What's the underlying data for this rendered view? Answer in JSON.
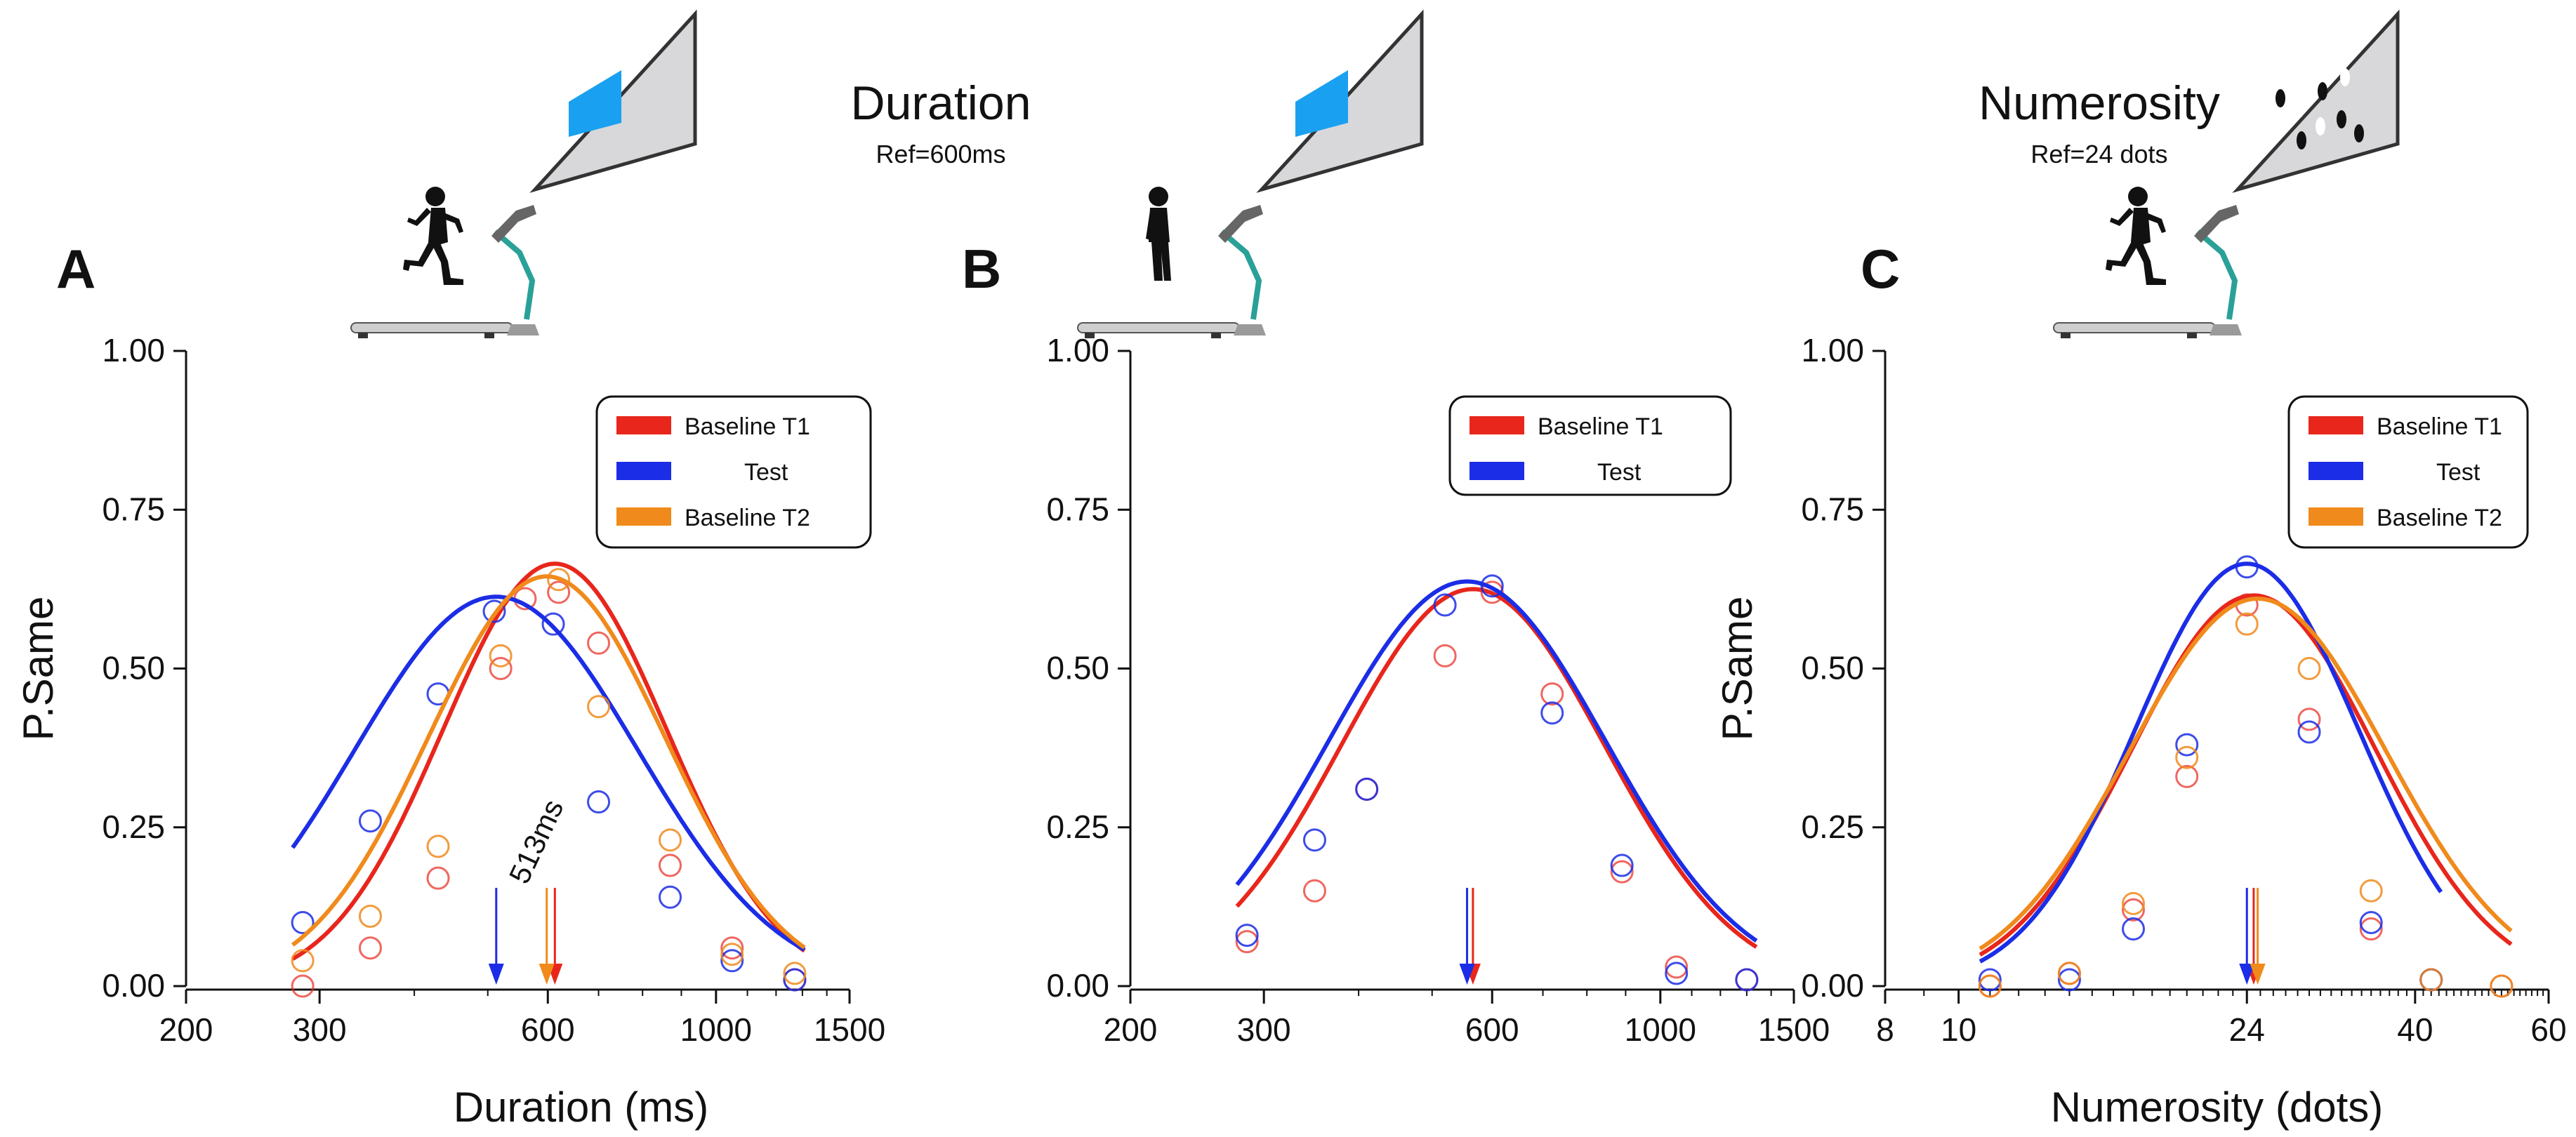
{
  "header": {
    "duration_title": "Duration",
    "duration_ref": "Ref=600ms",
    "numerosity_title": "Numerosity",
    "numerosity_ref": "Ref=24 dots"
  },
  "colors": {
    "baseline_t1": "#e8261c",
    "test": "#1b2de6",
    "baseline_t2": "#f08a1c",
    "screen_stim": "#1aa0f0",
    "arm": "#2aa198",
    "screen": "#d8d8da"
  },
  "icons": [
    "runner-on-treadmill-icon",
    "walker-on-treadmill-icon",
    "runner-on-treadmill-icon"
  ],
  "chart_data": [
    {
      "type": "line",
      "panel_letter": "A",
      "xlabel": "Duration (ms)",
      "ylabel": "P.Same",
      "xscale": "log",
      "xlim": [
        200,
        1500
      ],
      "ylim": [
        0,
        1
      ],
      "xticks": [
        200,
        300,
        600,
        1000,
        1500
      ],
      "xtick_labels": [
        "200",
        "300",
        "600",
        "1000",
        "1500"
      ],
      "yticks": [
        0,
        0.25,
        0.5,
        0.75,
        1.0
      ],
      "ytick_labels": [
        "0.00",
        "0.25",
        "0.50",
        "0.75",
        "1.00"
      ],
      "legend_position": "top-right",
      "annotation": "513ms",
      "series": [
        {
          "name": "Baseline T1",
          "color_key": "baseline_t1",
          "fit": {
            "peak": 0.665,
            "center": 613,
            "sigma_log": 0.34
          },
          "points_x": [
            285,
            350,
            430,
            520,
            560,
            620,
            700,
            870,
            1050,
            1270
          ],
          "points_y": [
            0.0,
            0.06,
            0.17,
            0.5,
            0.61,
            0.62,
            0.54,
            0.19,
            0.06,
            0.01
          ],
          "pse": 613
        },
        {
          "name": "Test",
          "color_key": "test",
          "fit": {
            "peak": 0.613,
            "center": 513,
            "sigma_log": 0.43
          },
          "points_x": [
            285,
            350,
            430,
            510,
            610,
            700,
            870,
            1050,
            1270
          ],
          "points_y": [
            0.1,
            0.26,
            0.46,
            0.59,
            0.57,
            0.29,
            0.14,
            0.04,
            0.01
          ],
          "pse": 513
        },
        {
          "name": "Baseline T2",
          "color_key": "baseline_t2",
          "fit": {
            "peak": 0.645,
            "center": 598,
            "sigma_log": 0.36
          },
          "points_x": [
            285,
            350,
            430,
            520,
            620,
            700,
            870,
            1050,
            1270
          ],
          "points_y": [
            0.04,
            0.11,
            0.22,
            0.52,
            0.64,
            0.44,
            0.23,
            0.05,
            0.02
          ],
          "pse": 598
        }
      ]
    },
    {
      "type": "line",
      "panel_letter": "B",
      "xlabel": "",
      "ylabel": "",
      "xscale": "log",
      "xlim": [
        200,
        1500
      ],
      "ylim": [
        0,
        1
      ],
      "xticks": [
        200,
        300,
        600,
        1000,
        1500
      ],
      "xtick_labels": [
        "200",
        "300",
        "600",
        "1000",
        "1500"
      ],
      "yticks": [
        0,
        0.25,
        0.5,
        0.75,
        1.0
      ],
      "ytick_labels": [
        "0.00",
        "0.25",
        "0.50",
        "0.75",
        "1.00"
      ],
      "legend_position": "top-right",
      "series": [
        {
          "name": "Baseline T1",
          "color_key": "baseline_t1",
          "fit": {
            "peak": 0.625,
            "center": 566,
            "sigma_log": 0.4
          },
          "points_x": [
            285,
            350,
            410,
            520,
            600,
            720,
            890,
            1050,
            1300
          ],
          "points_y": [
            0.07,
            0.15,
            0.31,
            0.52,
            0.62,
            0.46,
            0.18,
            0.03,
            0.01
          ],
          "pse": 566
        },
        {
          "name": "Test",
          "color_key": "test",
          "fit": {
            "peak": 0.637,
            "center": 556,
            "sigma_log": 0.42
          },
          "points_x": [
            285,
            350,
            410,
            520,
            600,
            720,
            890,
            1050,
            1300
          ],
          "points_y": [
            0.08,
            0.23,
            0.31,
            0.6,
            0.63,
            0.43,
            0.19,
            0.02,
            0.01
          ],
          "pse": 556
        }
      ]
    },
    {
      "type": "line",
      "panel_letter": "C",
      "xlabel": "Numerosity (dots)",
      "ylabel": "P.Same",
      "xscale": "log",
      "xlim": [
        8,
        60
      ],
      "ylim": [
        0,
        1
      ],
      "xticks": [
        8,
        10,
        24,
        40,
        60
      ],
      "xtick_labels": [
        "8",
        "10",
        "24",
        "40",
        "60"
      ],
      "yticks": [
        0,
        0.25,
        0.5,
        0.75,
        1.0
      ],
      "ytick_labels": [
        "0.00",
        "0.25",
        "0.50",
        "0.75",
        "1.00"
      ],
      "legend_position": "top-right",
      "series": [
        {
          "name": "Baseline T1",
          "color_key": "baseline_t1",
          "fit": {
            "peak": 0.615,
            "center": 24.5,
            "sigma_log": 0.37
          },
          "points_x": [
            11,
            14,
            17,
            20,
            24,
            29,
            35,
            42,
            52
          ],
          "points_y": [
            0.0,
            0.02,
            0.12,
            0.33,
            0.6,
            0.42,
            0.09,
            0.01,
            0.0
          ],
          "pse": 24.5
        },
        {
          "name": "Test",
          "color_key": "test",
          "fit": {
            "peak": 0.665,
            "center": 24.0,
            "sigma_log": 0.34
          },
          "points_x": [
            11,
            14,
            17,
            20,
            24,
            29,
            35,
            42
          ],
          "points_y": [
            0.01,
            0.01,
            0.09,
            0.38,
            0.66,
            0.4,
            0.1,
            0.01
          ],
          "pse": 24.0
        },
        {
          "name": "Baseline T2",
          "color_key": "baseline_t2",
          "fit": {
            "peak": 0.61,
            "center": 24.8,
            "sigma_log": 0.39
          },
          "points_x": [
            11,
            14,
            17,
            20,
            24,
            29,
            35,
            42,
            52
          ],
          "points_y": [
            0.0,
            0.02,
            0.13,
            0.36,
            0.57,
            0.5,
            0.15,
            0.01,
            0.0
          ],
          "pse": 24.8
        }
      ]
    }
  ]
}
